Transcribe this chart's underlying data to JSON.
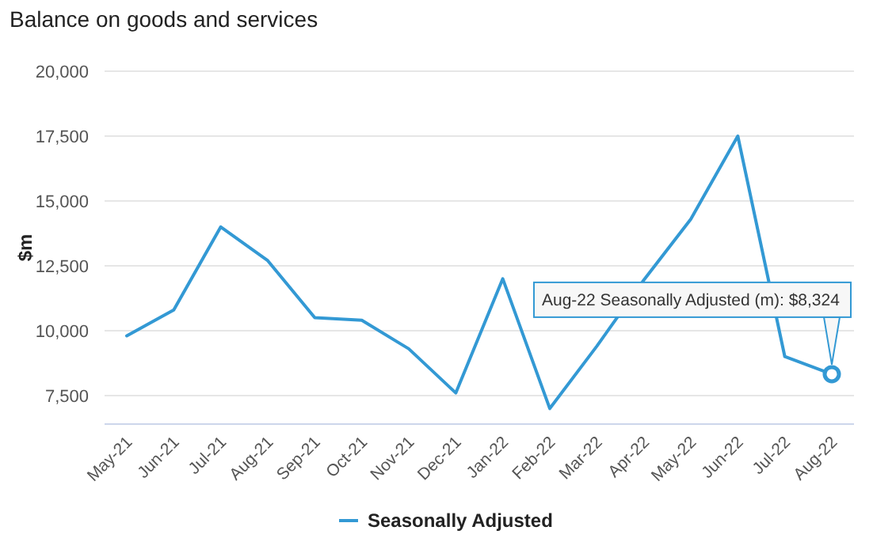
{
  "chart_data": {
    "type": "line",
    "title": "Balance on goods and services",
    "ylabel": "$m",
    "categories": [
      "May-21",
      "Jun-21",
      "Jul-21",
      "Aug-21",
      "Sep-21",
      "Oct-21",
      "Nov-21",
      "Dec-21",
      "Jan-22",
      "Feb-22",
      "Mar-22",
      "Apr-22",
      "May-22",
      "Jun-22",
      "Jul-22",
      "Aug-22"
    ],
    "series": [
      {
        "name": "Seasonally Adjusted",
        "color": "#3399d4",
        "values": [
          9800,
          10800,
          14000,
          12700,
          10500,
          10400,
          9300,
          7600,
          12000,
          7000,
          9400,
          11950,
          14300,
          17500,
          9000,
          8324
        ]
      }
    ],
    "ylim": [
      6400,
      20000
    ],
    "yticks": [
      {
        "value": 7500,
        "label": "7,500"
      },
      {
        "value": 10000,
        "label": "10,000"
      },
      {
        "value": 12500,
        "label": "12,500"
      },
      {
        "value": 15000,
        "label": "15,000"
      },
      {
        "value": 17500,
        "label": "17,500"
      },
      {
        "value": 20000,
        "label": "20,000"
      }
    ],
    "grid": "y",
    "legend": "bottom",
    "marker": "none",
    "line_style": "solid",
    "annotations": [
      {
        "text": "Aug-22 Seasonally Adjusted (m): $8,324",
        "x": "Aug-22",
        "y": 8324
      }
    ]
  }
}
